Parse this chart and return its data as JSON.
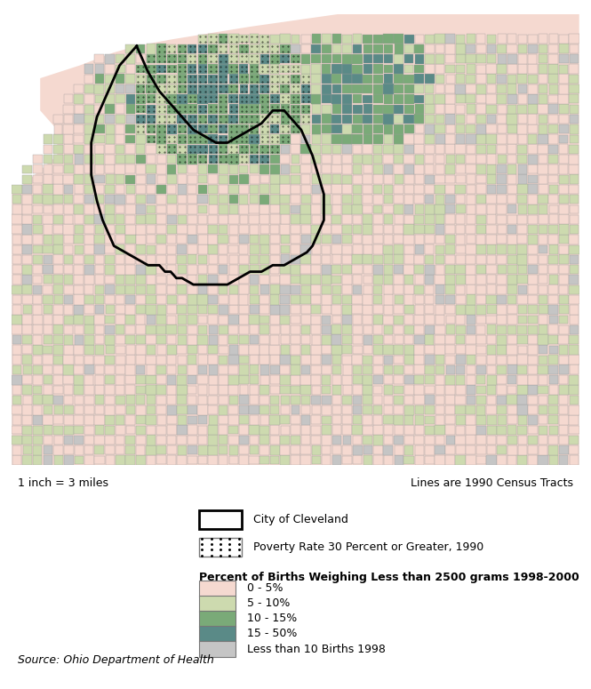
{
  "scale_text": "1 inch = 3 miles",
  "census_text": "Lines are 1990 Census Tracts",
  "source_text": "Source: Ohio Department of Health",
  "legend_item1_label": "City of Cleveland",
  "legend_item2_label": "Poverty Rate 30 Percent or Greater, 1990",
  "percent_title": "Percent of Births Weighing Less than 2500 grams 1998-2000",
  "percent_items": [
    {
      "label": "0 - 5%",
      "color": "#f5d9d0"
    },
    {
      "label": "5 - 10%",
      "color": "#cddaaf"
    },
    {
      "label": "10 - 15%",
      "color": "#7aaa78"
    },
    {
      "label": "15 - 50%",
      "color": "#5a8a87"
    },
    {
      "label": "Less than 10 Births 1998",
      "color": "#c5c5c5"
    }
  ],
  "map_lake_color": "#a8d4e8",
  "map_bg": "#f5d9d0",
  "figure_bg": "#ffffff",
  "map_border": "#888888"
}
